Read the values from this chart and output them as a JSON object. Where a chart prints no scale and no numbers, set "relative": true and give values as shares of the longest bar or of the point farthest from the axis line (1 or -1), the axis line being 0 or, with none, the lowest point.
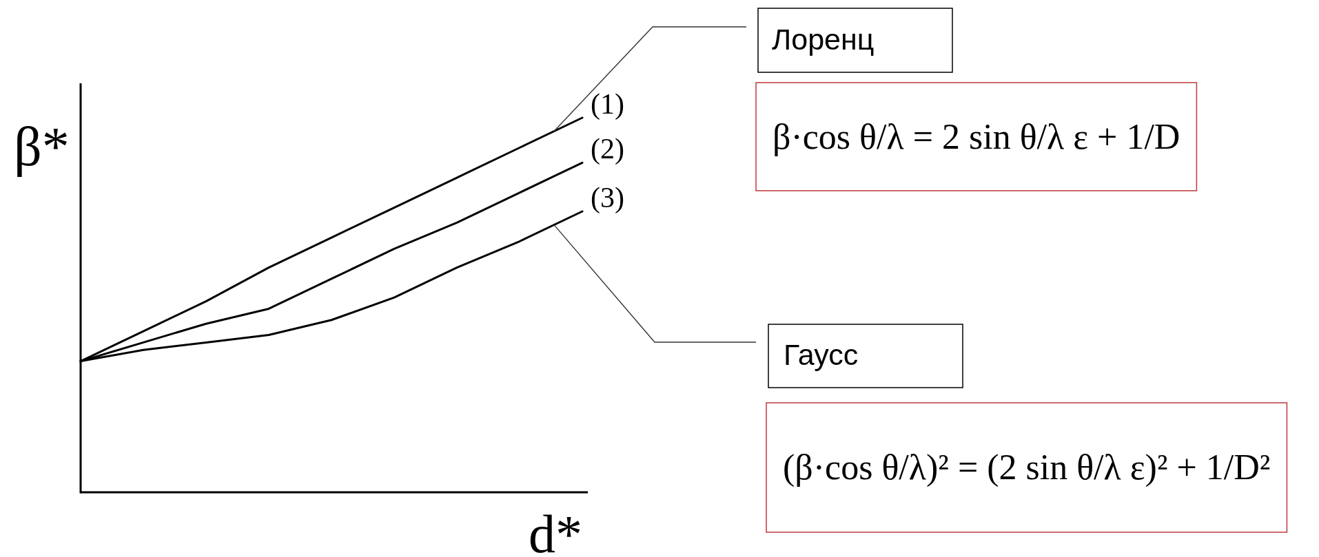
{
  "chart_data": {
    "type": "line",
    "relative": true,
    "xlabel": "d*",
    "ylabel": "β*",
    "categories": [
      null,
      null,
      null,
      null,
      null,
      null,
      null,
      null,
      null
    ],
    "series": [
      {
        "name": "(1)",
        "color": "#000000",
        "values": [
          0.35,
          0.43,
          0.51,
          0.6,
          0.68,
          0.76,
          0.84,
          0.92,
          1
        ]
      },
      {
        "name": "(2)",
        "color": "#000000",
        "values": [
          0.35,
          0.4,
          0.45,
          0.49,
          0.57,
          0.65,
          0.72,
          0.8,
          0.88
        ]
      },
      {
        "name": "(3)",
        "color": "#000000",
        "values": [
          0.35,
          0.38,
          0.4,
          0.42,
          0.46,
          0.52,
          0.6,
          0.67,
          0.75
        ]
      }
    ],
    "annotations": [
      "Лоренц",
      "β·cos θ/λ = 2 sin θ/λ ε + 1/D",
      "Гаусс",
      "(β·cos θ/λ)² = (2 sin θ/λ ε)² + 1/D²"
    ]
  }
}
